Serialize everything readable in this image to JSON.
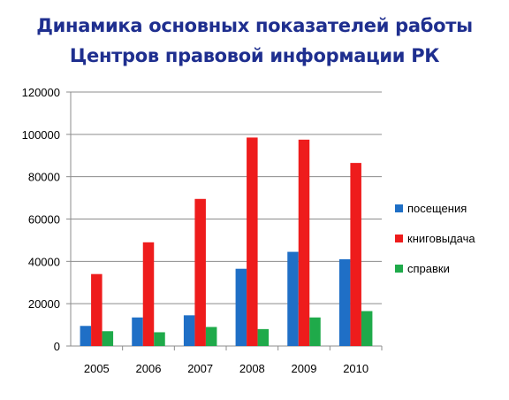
{
  "chart_data": {
    "type": "bar",
    "title": [
      "Динамика основных показателей работы",
      "Центров правовой информации РК"
    ],
    "categories": [
      "2005",
      "2006",
      "2007",
      "2008",
      "2009",
      "2010"
    ],
    "series": [
      {
        "name": "посещения",
        "color": "#1f6fc6",
        "values": [
          9500,
          13500,
          14500,
          36500,
          44500,
          41000
        ]
      },
      {
        "name": "книговыдача",
        "color": "#ee1c1c",
        "values": [
          34000,
          49000,
          69500,
          98500,
          97500,
          86500
        ]
      },
      {
        "name": "справки",
        "color": "#1faa4a",
        "values": [
          7000,
          6500,
          9000,
          8000,
          13500,
          16500
        ]
      }
    ],
    "ylim": [
      0,
      120000
    ],
    "yticks": [
      "0",
      "20000",
      "40000",
      "60000",
      "80000",
      "100000",
      "120000"
    ],
    "grid": true,
    "legend": "right"
  }
}
